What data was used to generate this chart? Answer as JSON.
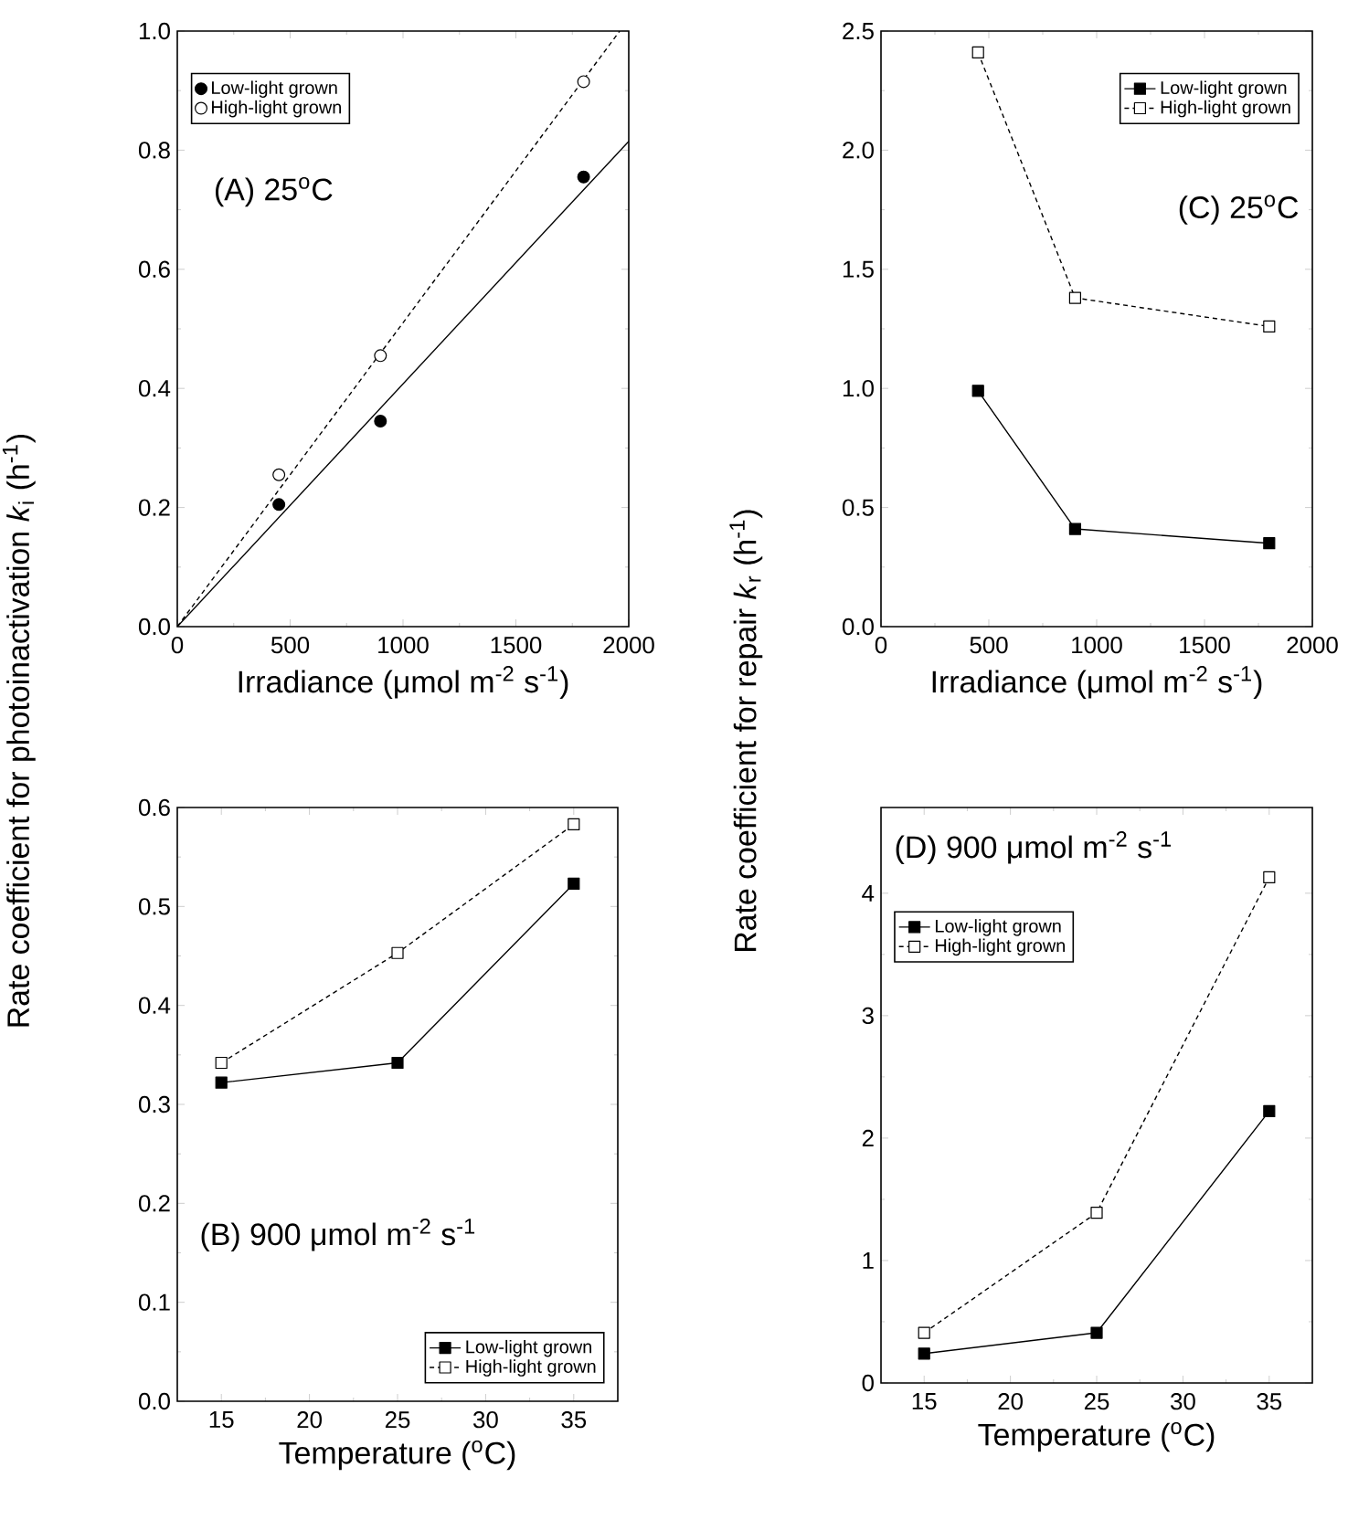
{
  "chart_data": [
    {
      "type": "scatter",
      "xlabel": "Irradiance  (μmol m$^{-2}$ s$^{-1}$)",
      "ylabel": "Rate coefficient for photoinactivation  *k*$_{i}$  (h$^{-1}$)",
      "annotations": [
        "(A)  25$^{o}$C"
      ],
      "marker": "circle",
      "legend": "top left",
      "xlim": [
        0,
        2000
      ],
      "xticks": [
        0,
        500,
        1000,
        1500,
        2000
      ],
      "ylim": [
        0,
        1.0
      ],
      "yticks": [
        {
          "value": 0,
          "label": "0.0"
        },
        0.2,
        0.4,
        0.6,
        0.8,
        {
          "value": 1,
          "label": "1.0"
        }
      ],
      "series": [
        {
          "name": "Low-light grown",
          "color": "#000000",
          "x": [
            450,
            900,
            1800
          ],
          "values": [
            0.205,
            0.345,
            0.755
          ]
        },
        {
          "name": "High-light grown",
          "color": "#000000",
          "x": [
            450,
            900,
            1800
          ],
          "values": [
            0.255,
            0.455,
            0.915
          ]
        },
        {
          "type": "line",
          "color": "#000000",
          "marker": "none",
          "line_style": "solid",
          "x": [
            0,
            2000
          ],
          "values": [
            0,
            0.815
          ]
        },
        {
          "type": "line",
          "color": "#000000",
          "marker": "none",
          "line_style": "dashed",
          "x": [
            0,
            1960
          ],
          "values": [
            0,
            1.0
          ]
        }
      ]
    },
    {
      "type": "line",
      "xlabel": "Irradiance  (μmol m$^{-2}$ s$^{-1}$)",
      "ylabel": "Rate coefficient for repair  *k*$_{r}$  (h$^{-1}$)",
      "annotations": [
        "(C)  25$^{o}$C"
      ],
      "marker": "square",
      "legend": "top right",
      "xlim": [
        0,
        2000
      ],
      "xticks": [
        0,
        500,
        1000,
        1500,
        2000
      ],
      "ylim": [
        0,
        2.5
      ],
      "yticks": [
        {
          "value": 0,
          "label": "0.0"
        },
        0.5,
        {
          "value": 1,
          "label": "1.0"
        },
        1.5,
        {
          "value": 2,
          "label": "2.0"
        },
        2.5
      ],
      "series": [
        {
          "name": "Low-light grown",
          "color": "#000000",
          "line_style": "solid",
          "x": [
            450,
            900,
            1800
          ],
          "values": [
            0.99,
            0.41,
            0.35
          ]
        },
        {
          "name": "High-light grown",
          "color": "#000000",
          "line_style": "dashed",
          "x": [
            450,
            900,
            1800
          ],
          "values": [
            2.41,
            1.38,
            1.26
          ]
        }
      ]
    },
    {
      "type": "line",
      "xlabel": "Temperature  ($^{o}$C)",
      "annotations": [
        "(B)  900 μmol m$^{-2}$ s$^{-1}$"
      ],
      "marker": "square",
      "legend": "bottom right",
      "xlim": [
        12.5,
        37.5
      ],
      "xticks": [
        15,
        20,
        25,
        30,
        35
      ],
      "ylim": [
        0,
        0.6
      ],
      "yticks": [
        {
          "value": 0,
          "label": "0.0"
        },
        0.1,
        0.2,
        0.3,
        0.4,
        0.5,
        0.6
      ],
      "series": [
        {
          "name": "Low-light grown",
          "color": "#000000",
          "line_style": "solid",
          "x": [
            15,
            25,
            35
          ],
          "values": [
            0.322,
            0.342,
            0.523
          ]
        },
        {
          "name": "High-light grown",
          "color": "#000000",
          "line_style": "dashed",
          "x": [
            15,
            25,
            35
          ],
          "values": [
            0.342,
            0.453,
            0.583
          ]
        }
      ]
    },
    {
      "type": "line",
      "xlabel": "Temperature  ($^{o}$C)",
      "annotations": [
        "(D)  900 μmol m$^{-2}$ s$^{-1}$"
      ],
      "marker": "square",
      "legend": "top left",
      "xlim": [
        12.5,
        37.5
      ],
      "xticks": [
        15,
        20,
        25,
        30,
        35
      ],
      "ylim": [
        0,
        4.7
      ],
      "yticks": [
        0,
        1,
        2,
        3,
        4
      ],
      "series": [
        {
          "name": "Low-light grown",
          "color": "#000000",
          "line_style": "solid",
          "x": [
            15,
            25,
            35
          ],
          "values": [
            0.24,
            0.41,
            2.22
          ]
        },
        {
          "name": "High-light grown",
          "color": "#000000",
          "line_style": "dashed",
          "x": [
            15,
            25,
            35
          ],
          "values": [
            0.41,
            1.39,
            4.13
          ]
        }
      ]
    }
  ]
}
